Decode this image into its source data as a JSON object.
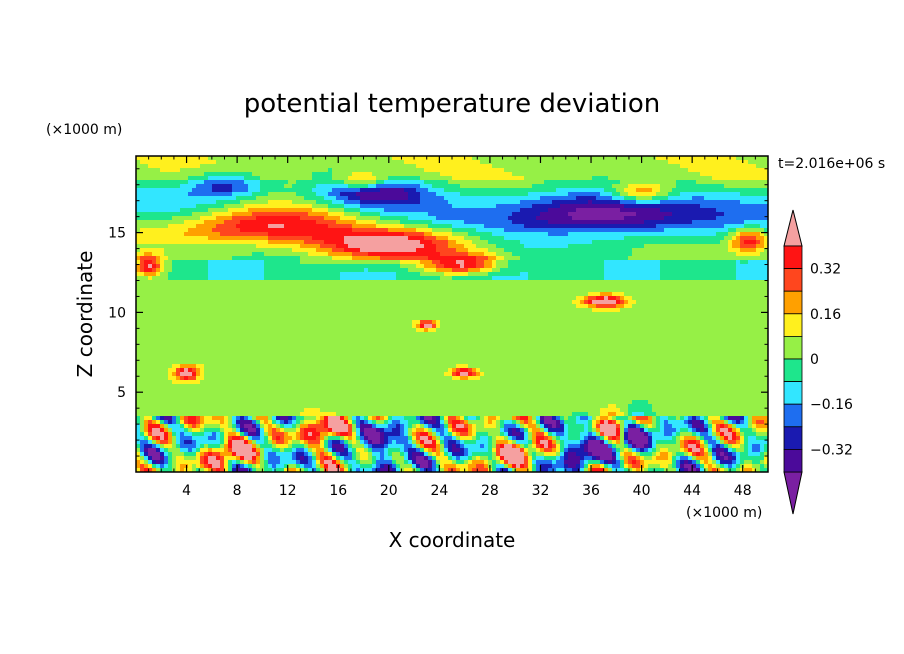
{
  "chart_data": {
    "type": "heatmap",
    "title": "potential temperature deviation",
    "xlabel": "X coordinate",
    "ylabel": "Z coordinate",
    "x_unit": "(×1000 m)",
    "y_unit": "(×1000 m)",
    "time_label": "t=2.016e+06 s",
    "xlim": [
      0,
      50
    ],
    "ylim": [
      0,
      19.8
    ],
    "x_ticks": [
      4,
      8,
      12,
      16,
      20,
      24,
      28,
      32,
      36,
      40,
      44,
      48
    ],
    "y_ticks": [
      5,
      10,
      15
    ],
    "x_tick_labels": [
      "4",
      "8",
      "12",
      "16",
      "20",
      "24",
      "28",
      "32",
      "36",
      "40",
      "44",
      "48"
    ],
    "y_tick_labels": [
      "5",
      "10",
      "15"
    ],
    "colorbar": {
      "levels": [
        -0.4,
        -0.32,
        -0.24,
        -0.16,
        -0.08,
        0,
        0.08,
        0.16,
        0.24,
        0.32,
        0.4
      ],
      "tick_labels": [
        "0.32",
        "0.16",
        "0",
        "−0.16",
        "−0.32"
      ],
      "tick_values": [
        0.32,
        0.16,
        0,
        -0.16,
        -0.32
      ],
      "colors": [
        "#7a1fa2",
        "#4b0a9a",
        "#1a1ab0",
        "#1e6ef0",
        "#32e6ff",
        "#1ee68c",
        "#96f046",
        "#fff01e",
        "#ffa000",
        "#ff461e",
        "#ff1414",
        "#f5a0a0"
      ],
      "extend": "both"
    },
    "features": [
      {
        "kind": "band",
        "x": [
          0,
          50
        ],
        "z": [
          15,
          18
        ],
        "value": -0.3
      },
      {
        "kind": "blob",
        "x": 10,
        "z": 15.5,
        "rx": 8,
        "rz": 1.2,
        "value": 0.45
      },
      {
        "kind": "blob",
        "x": 20,
        "z": 14.2,
        "rx": 6,
        "rz": 1.0,
        "value": 0.45
      },
      {
        "kind": "blob",
        "x": 26,
        "z": 13.0,
        "rx": 3,
        "rz": 0.6,
        "value": 0.45
      },
      {
        "kind": "blob",
        "x": 7,
        "z": 18.0,
        "rx": 3,
        "rz": 0.8,
        "value": -0.3
      },
      {
        "kind": "blob",
        "x": 19,
        "z": 17.6,
        "rx": 4,
        "rz": 0.9,
        "value": -0.3
      },
      {
        "kind": "blob",
        "x": 37,
        "z": 16.0,
        "rx": 9,
        "rz": 1.4,
        "value": -0.35
      },
      {
        "kind": "blob",
        "x": 18,
        "z": 18.2,
        "rx": 2,
        "rz": 0.6,
        "value": 0.3
      },
      {
        "kind": "blob",
        "x": 40,
        "z": 17.5,
        "rx": 2.5,
        "rz": 0.7,
        "value": 0.35
      },
      {
        "kind": "blob",
        "x": 48.5,
        "z": 14.5,
        "rx": 1.5,
        "rz": 0.8,
        "value": 0.4
      },
      {
        "kind": "blob",
        "x": 1.0,
        "z": 12.9,
        "rx": 1.2,
        "rz": 0.7,
        "value": 0.45
      },
      {
        "kind": "blob",
        "x": 37,
        "z": 10.7,
        "rx": 1.8,
        "rz": 0.4,
        "value": 0.45
      },
      {
        "kind": "blob",
        "x": 4,
        "z": 6.2,
        "rx": 1.0,
        "rz": 0.5,
        "value": 0.45
      },
      {
        "kind": "blob",
        "x": 26,
        "z": 6.2,
        "rx": 1.0,
        "rz": 0.3,
        "value": 0.45
      },
      {
        "kind": "blob",
        "x": 23,
        "z": 9.2,
        "rx": 0.8,
        "rz": 0.3,
        "value": 0.45
      },
      {
        "kind": "blob",
        "x": 19.5,
        "z": 1.5,
        "rx": 2,
        "rz": 1.2,
        "value": -0.35
      },
      {
        "kind": "blob",
        "x": 35.5,
        "z": 1.5,
        "rx": 2,
        "rz": 1.3,
        "value": -0.35
      },
      {
        "kind": "blob",
        "x": 39.5,
        "z": 2.5,
        "rx": 1.5,
        "rz": 1.2,
        "value": -0.35
      },
      {
        "kind": "blob",
        "x": 7.5,
        "z": 1.3,
        "rx": 1.8,
        "rz": 1.0,
        "value": 0.35
      },
      {
        "kind": "blob",
        "x": 15,
        "z": 2.5,
        "rx": 1.5,
        "rz": 1.0,
        "value": 0.4
      },
      {
        "kind": "blob",
        "x": 38,
        "z": 2.8,
        "rx": 1.2,
        "rz": 0.8,
        "value": 0.45
      },
      {
        "kind": "blob",
        "x": 30,
        "z": 1.3,
        "rx": 2,
        "rz": 1.0,
        "value": 0.3
      }
    ]
  }
}
